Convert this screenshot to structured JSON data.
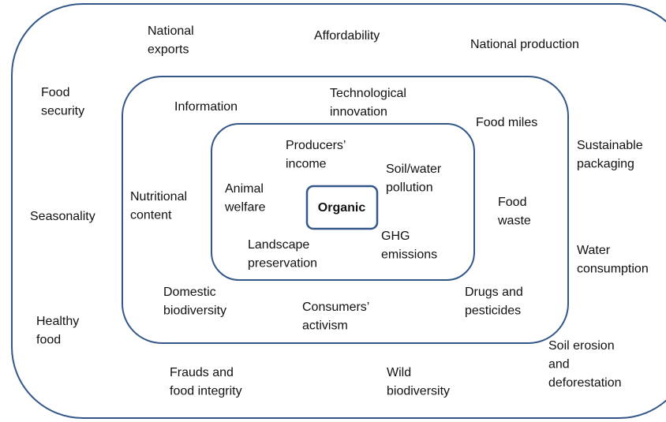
{
  "center": {
    "label": "Organic"
  },
  "inner": [
    {
      "lines": [
        "Producers’",
        "income"
      ]
    },
    {
      "lines": [
        "Soil/water",
        "pollution"
      ]
    },
    {
      "lines": [
        "Animal",
        "welfare"
      ]
    },
    {
      "lines": [
        "Landscape",
        "preservation"
      ]
    },
    {
      "lines": [
        "GHG",
        "emissions"
      ]
    }
  ],
  "middle": [
    {
      "lines": [
        "Information"
      ]
    },
    {
      "lines": [
        "Technological",
        "innovation"
      ]
    },
    {
      "lines": [
        "Food miles"
      ]
    },
    {
      "lines": [
        "Nutritional",
        "content"
      ]
    },
    {
      "lines": [
        "Food",
        "waste"
      ]
    },
    {
      "lines": [
        "Domestic",
        "biodiversity"
      ]
    },
    {
      "lines": [
        "Consumers’",
        "activism"
      ]
    },
    {
      "lines": [
        "Drugs and",
        "pesticides"
      ]
    }
  ],
  "outer": [
    {
      "lines": [
        "National",
        "exports"
      ]
    },
    {
      "lines": [
        "Affordability"
      ]
    },
    {
      "lines": [
        "National production"
      ]
    },
    {
      "lines": [
        "Food",
        "security"
      ]
    },
    {
      "lines": [
        "Sustainable",
        "packaging"
      ]
    },
    {
      "lines": [
        "Seasonality"
      ]
    },
    {
      "lines": [
        "Water",
        "consumption"
      ]
    },
    {
      "lines": [
        "Healthy",
        "food"
      ]
    },
    {
      "lines": [
        "Soil erosion",
        "and",
        "deforestation"
      ]
    },
    {
      "lines": [
        "Frauds and",
        "food integrity"
      ]
    },
    {
      "lines": [
        "Wild",
        "biodiversity"
      ]
    }
  ]
}
